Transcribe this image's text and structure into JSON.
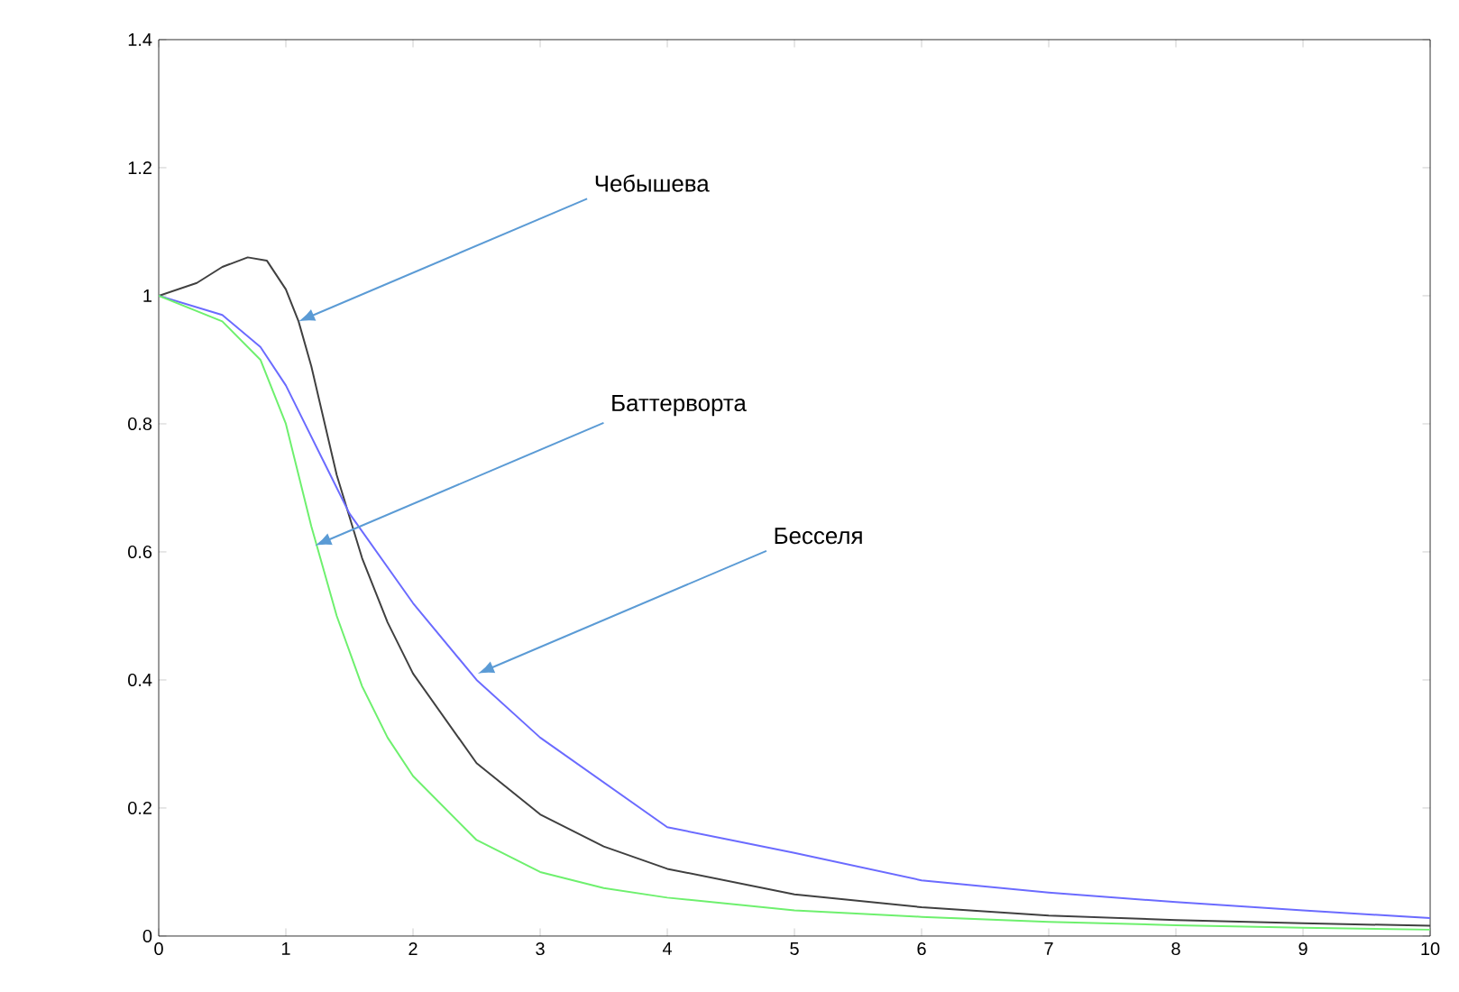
{
  "chart_data": {
    "type": "line",
    "xlim": [
      0,
      10
    ],
    "ylim": [
      0,
      1.4
    ],
    "xticks": [
      0,
      1,
      2,
      3,
      4,
      5,
      6,
      7,
      8,
      9,
      10
    ],
    "yticks": [
      0,
      0.2,
      0.4,
      0.6,
      0.8,
      1,
      1.2,
      1.4
    ],
    "grid": false,
    "marker": "none",
    "line_style": "solid",
    "series": [
      {
        "color": "#404040",
        "x": [
          0,
          0.3,
          0.5,
          0.7,
          0.85,
          1.0,
          1.1,
          1.2,
          1.4,
          1.6,
          1.8,
          2.0,
          2.5,
          3,
          3.5,
          4,
          5,
          6,
          7,
          8,
          9,
          10
        ],
        "values": [
          1,
          1.02,
          1.045,
          1.06,
          1.055,
          1.01,
          0.96,
          0.89,
          0.72,
          0.59,
          0.49,
          0.41,
          0.27,
          0.19,
          0.14,
          0.105,
          0.065,
          0.045,
          0.032,
          0.025,
          0.02,
          0.016
        ]
      },
      {
        "color": "#6b6bff",
        "x": [
          0,
          0.5,
          0.8,
          1,
          1.3,
          1.5,
          2,
          2.5,
          3,
          3.5,
          4,
          4.5,
          5,
          6,
          7,
          8,
          9,
          10
        ],
        "values": [
          1,
          0.97,
          0.92,
          0.86,
          0.74,
          0.66,
          0.52,
          0.4,
          0.31,
          0.24,
          0.17,
          0.15,
          0.13,
          0.087,
          0.068,
          0.053,
          0.04,
          0.028
        ]
      },
      {
        "color": "#6ef06e",
        "x": [
          0,
          0.5,
          0.8,
          1,
          1.2,
          1.4,
          1.6,
          1.8,
          2,
          2.5,
          3,
          3.5,
          4,
          5,
          6,
          7,
          8,
          9,
          10
        ],
        "values": [
          1,
          0.96,
          0.9,
          0.8,
          0.64,
          0.5,
          0.39,
          0.31,
          0.25,
          0.15,
          0.1,
          0.075,
          0.06,
          0.04,
          0.03,
          0.022,
          0.017,
          0.013,
          0.01
        ]
      }
    ],
    "annotations": [
      {
        "text": "Чебышева",
        "x": 1.1,
        "y": 0.96
      },
      {
        "text": "Баттерворта",
        "x": 1.23,
        "y": 0.61
      },
      {
        "text": "Бесселя",
        "x": 2.51,
        "y": 0.41
      }
    ]
  }
}
